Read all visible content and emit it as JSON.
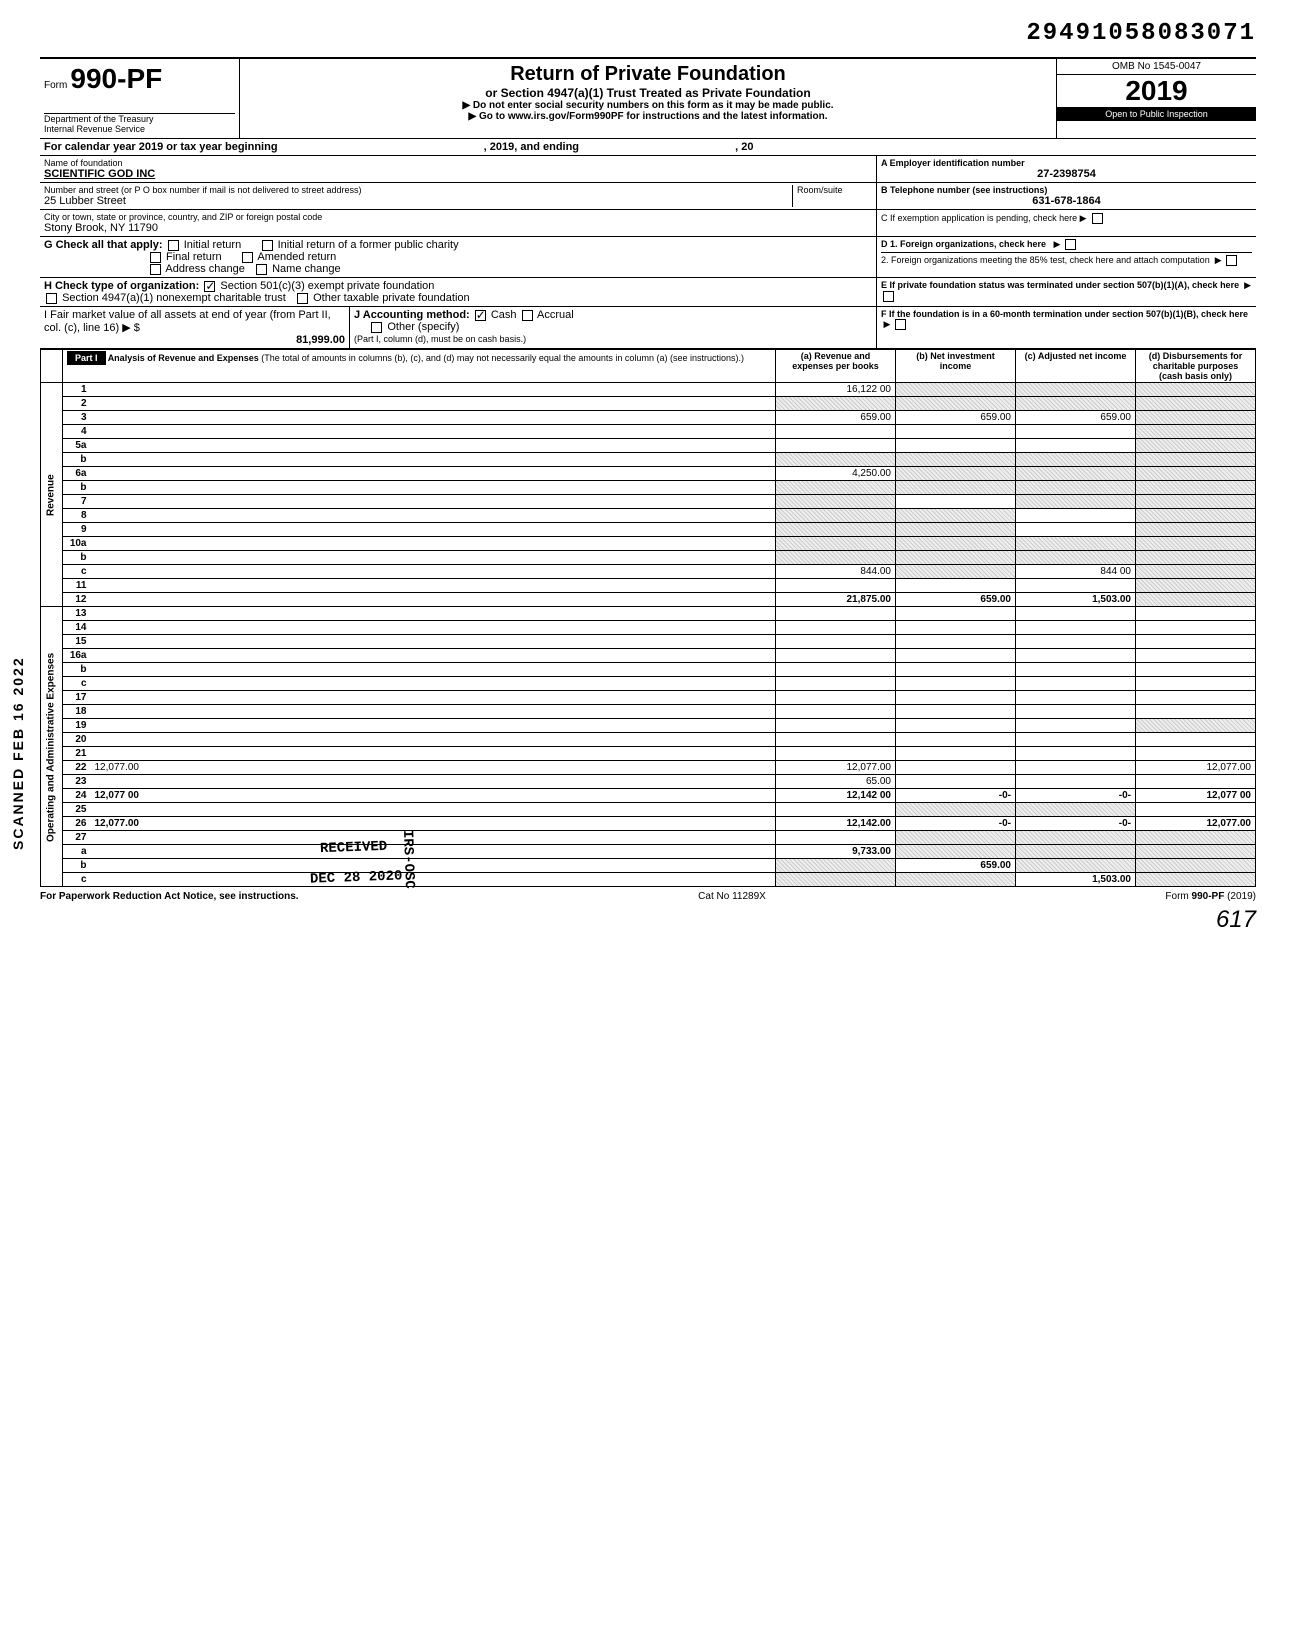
{
  "topNumber": "29491058083071",
  "form": {
    "prefix": "Form",
    "number": "990-PF",
    "dept": "Department of the Treasury",
    "irs": "Internal Revenue Service"
  },
  "title": "Return of Private Foundation",
  "subtitle": "or Section 4947(a)(1) Trust Treated as Private Foundation",
  "instruct1": "▶ Do not enter social security numbers on this form as it may be made public.",
  "instruct2": "▶ Go to www.irs.gov/Form990PF for instructions and the latest information.",
  "omb": "OMB No 1545-0047",
  "year": "2019",
  "inspect": "Open to Public Inspection",
  "calendarLine": {
    "prefix": "For calendar year 2019 or tax year beginning",
    "mid": ", 2019, and ending",
    "end": ", 20"
  },
  "labels": {
    "nameOfFoundation": "Name of foundation",
    "einLabel": "A  Employer identification number",
    "addressLabel": "Number and street (or P O box number if mail is not delivered to street address)",
    "roomSuite": "Room/suite",
    "phoneLabel": "B  Telephone number (see instructions)",
    "cityLabel": "City or town, state or province, country, and ZIP or foreign postal code",
    "exemptionPending": "C  If exemption application is pending, check here ▶",
    "checkAll": "G   Check all that apply:",
    "initialReturn": "Initial return",
    "initialFormer": "Initial return of a former public charity",
    "finalReturn": "Final return",
    "amendedReturn": "Amended return",
    "addressChange": "Address change",
    "nameChange": "Name change",
    "foreignOrg": "D  1. Foreign organizations, check here",
    "foreign85": "2. Foreign organizations meeting the 85% test, check here and attach computation",
    "checkType": "H   Check type of organization:",
    "sec501": "Section 501(c)(3) exempt private foundation",
    "sec4947": "Section 4947(a)(1) nonexempt charitable trust",
    "otherTaxable": "Other taxable private foundation",
    "terminated": "E  If private foundation status was terminated under section 507(b)(1)(A), check here",
    "fmv": "I   Fair market value of all assets at end of year  (from Part II, col. (c), line 16) ▶ $",
    "acctMethod": "J   Accounting method:",
    "cash": "Cash",
    "accrual": "Accrual",
    "otherSpecify": "Other (specify)",
    "partICol": "(Part I, column (d), must be on cash basis.)",
    "sixtyMonth": "F  If the foundation is in a 60-month termination under section 507(b)(1)(B), check here"
  },
  "foundation": {
    "name": "SCIENTIFIC GOD INC",
    "ein": "27-2398754",
    "street": "25 Lubber Street",
    "phone": "631-678-1864",
    "city": "Stony Brook, NY 11790",
    "fmvAmount": "81,999.00"
  },
  "partI": {
    "label": "Part I",
    "heading": "Analysis of Revenue and Expenses",
    "headingNote": "(The total of amounts in columns (b), (c), and (d) may not necessarily equal the amounts in column (a) (see instructions).)",
    "colA": "(a) Revenue and expenses per books",
    "colB": "(b) Net investment income",
    "colC": "(c) Adjusted net income",
    "colD": "(d) Disbursements for charitable purposes (cash basis only)"
  },
  "sections": {
    "revenue": "Revenue",
    "expenses": "Operating and Administrative Expenses"
  },
  "lines": [
    {
      "n": "1",
      "d": "",
      "a": "16,122 00",
      "b": "",
      "c": "",
      "bS": true,
      "cS": true,
      "dS": true
    },
    {
      "n": "2",
      "d": "",
      "a": "",
      "b": "",
      "c": "",
      "aS": true,
      "bS": true,
      "cS": true,
      "dS": true
    },
    {
      "n": "3",
      "d": "",
      "a": "659.00",
      "b": "659.00",
      "c": "659.00",
      "dS": true
    },
    {
      "n": "4",
      "d": "",
      "a": "",
      "b": "",
      "c": "",
      "dS": true
    },
    {
      "n": "5a",
      "d": "",
      "a": "",
      "b": "",
      "c": "",
      "dS": true
    },
    {
      "n": "b",
      "d": "",
      "a": "",
      "b": "",
      "c": "",
      "aS": true,
      "bS": true,
      "cS": true,
      "dS": true
    },
    {
      "n": "6a",
      "d": "",
      "a": "4,250.00",
      "b": "",
      "c": "",
      "bS": true,
      "cS": true,
      "dS": true
    },
    {
      "n": "b",
      "d": "",
      "a": "",
      "b": "",
      "c": "",
      "aS": true,
      "bS": true,
      "cS": true,
      "dS": true
    },
    {
      "n": "7",
      "d": "",
      "a": "",
      "b": "",
      "c": "",
      "aS": true,
      "cS": true,
      "dS": true
    },
    {
      "n": "8",
      "d": "",
      "a": "",
      "b": "",
      "c": "",
      "aS": true,
      "bS": true,
      "dS": true
    },
    {
      "n": "9",
      "d": "",
      "a": "",
      "b": "",
      "c": "",
      "aS": true,
      "bS": true,
      "dS": true
    },
    {
      "n": "10a",
      "d": "",
      "a": "",
      "b": "",
      "c": "",
      "aS": true,
      "bS": true,
      "cS": true,
      "dS": true
    },
    {
      "n": "b",
      "d": "",
      "a": "",
      "b": "",
      "c": "",
      "aS": true,
      "bS": true,
      "cS": true,
      "dS": true
    },
    {
      "n": "c",
      "d": "",
      "a": "844.00",
      "b": "",
      "c": "844 00",
      "bS": true,
      "dS": true
    },
    {
      "n": "11",
      "d": "",
      "a": "",
      "b": "",
      "c": "",
      "dS": true
    },
    {
      "n": "12",
      "d": "",
      "a": "21,875.00",
      "b": "659.00",
      "c": "1,503.00",
      "bold": true,
      "dS": true
    }
  ],
  "expLines": [
    {
      "n": "13",
      "d": "",
      "a": "",
      "b": "",
      "c": ""
    },
    {
      "n": "14",
      "d": "",
      "a": "",
      "b": "",
      "c": ""
    },
    {
      "n": "15",
      "d": "",
      "a": "",
      "b": "",
      "c": ""
    },
    {
      "n": "16a",
      "d": "",
      "a": "",
      "b": "",
      "c": ""
    },
    {
      "n": "b",
      "d": "",
      "a": "",
      "b": "",
      "c": ""
    },
    {
      "n": "c",
      "d": "",
      "a": "",
      "b": "",
      "c": ""
    },
    {
      "n": "17",
      "d": "",
      "a": "",
      "b": "",
      "c": ""
    },
    {
      "n": "18",
      "d": "",
      "a": "",
      "b": "",
      "c": ""
    },
    {
      "n": "19",
      "d": "",
      "a": "",
      "b": "",
      "c": "",
      "dS": true
    },
    {
      "n": "20",
      "d": "",
      "a": "",
      "b": "",
      "c": ""
    },
    {
      "n": "21",
      "d": "",
      "a": "",
      "b": "",
      "c": ""
    },
    {
      "n": "22",
      "d": "12,077.00",
      "a": "12,077.00",
      "b": "",
      "c": ""
    },
    {
      "n": "23",
      "d": "",
      "a": "65.00",
      "b": "",
      "c": ""
    },
    {
      "n": "24",
      "d": "12,077 00",
      "a": "12,142 00",
      "b": "-0-",
      "c": "-0-",
      "bold": true
    },
    {
      "n": "25",
      "d": "",
      "a": "",
      "b": "",
      "c": "",
      "bS": true,
      "cS": true
    },
    {
      "n": "26",
      "d": "12,077.00",
      "a": "12,142.00",
      "b": "-0-",
      "c": "-0-",
      "bold": true
    },
    {
      "n": "27",
      "d": "",
      "a": "",
      "b": "",
      "c": "",
      "bS": true,
      "cS": true,
      "dS": true
    },
    {
      "n": "a",
      "d": "",
      "a": "9,733.00",
      "b": "",
      "c": "",
      "bold": true,
      "bS": true,
      "cS": true,
      "dS": true
    },
    {
      "n": "b",
      "d": "",
      "a": "",
      "b": "659.00",
      "c": "",
      "bold": true,
      "aS": true,
      "cS": true,
      "dS": true
    },
    {
      "n": "c",
      "d": "",
      "a": "",
      "b": "",
      "c": "1,503.00",
      "bold": true,
      "aS": true,
      "bS": true,
      "dS": true
    }
  ],
  "footer": {
    "left": "For Paperwork Reduction Act Notice, see instructions.",
    "center": "Cat No 11289X",
    "right": "Form 990-PF (2019)"
  },
  "stamps": {
    "received": "RECEIVED",
    "date": "DEC 28 2020",
    "irsOsc": "IRS-OSC",
    "scanned": "SCANNED FEB 16 2022"
  },
  "signature": "617"
}
